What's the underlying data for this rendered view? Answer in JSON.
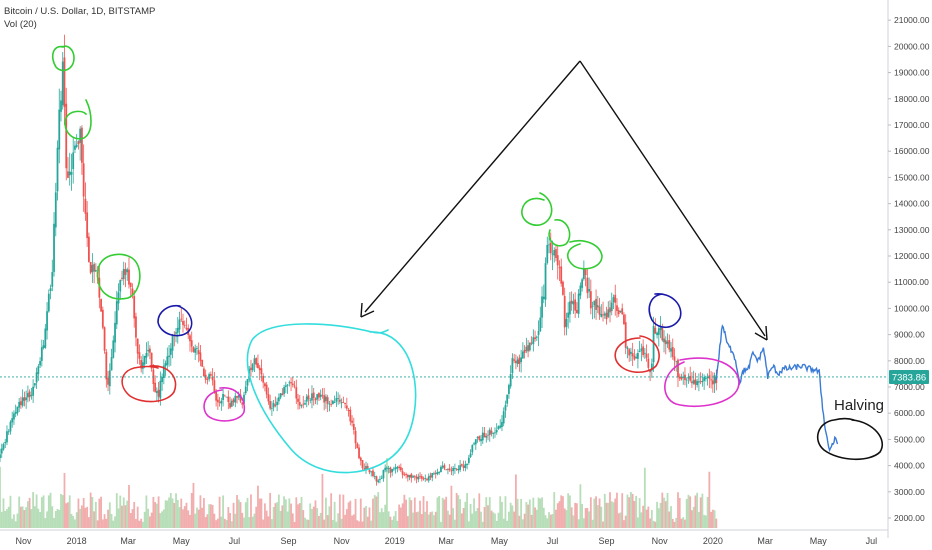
{
  "chart_title": "Bitcoin / U.S. Dollar, 1D, BITSTAMP",
  "volume_label": "Vol (20)",
  "chart_data": {
    "type": "line",
    "title": "Bitcoin / U.S. Dollar, 1D, BITSTAMP",
    "ylim": [
      1500,
      21500
    ],
    "y_ticks": [
      "2000.00",
      "3000.00",
      "4000.00",
      "5000.00",
      "6000.00",
      "7000.00",
      "8000.00",
      "9000.00",
      "10000.00",
      "11000.00",
      "12000.00",
      "13000.00",
      "14000.00",
      "15000.00",
      "16000.00",
      "17000.00",
      "18000.00",
      "19000.00",
      "20000.00",
      "21000.00"
    ],
    "y_tick_values": [
      2000,
      3000,
      4000,
      5000,
      6000,
      7000,
      8000,
      9000,
      10000,
      11000,
      12000,
      13000,
      14000,
      15000,
      16000,
      17000,
      18000,
      19000,
      20000,
      21000
    ],
    "x_ticks": [
      "Nov",
      "2018",
      "Mar",
      "May",
      "Jul",
      "Sep",
      "Nov",
      "2019",
      "Mar",
      "May",
      "Jul",
      "Sep",
      "Nov",
      "2020",
      "Mar",
      "May",
      "Jul"
    ],
    "x_tick_dates": [
      "2017-11-01",
      "2018-01-01",
      "2018-03-01",
      "2018-05-01",
      "2018-07-01",
      "2018-09-01",
      "2018-11-01",
      "2019-01-01",
      "2019-03-01",
      "2019-05-01",
      "2019-07-01",
      "2019-09-01",
      "2019-11-01",
      "2020-01-01",
      "2020-03-01",
      "2020-05-01",
      "2020-07-01"
    ],
    "x_range": [
      "2017-10-05",
      "2020-07-20"
    ],
    "current_price": "7383.86",
    "current_price_value": 7383.86,
    "price_series": {
      "name": "",
      "dates": [
        "2017-10-05",
        "2017-10-20",
        "2017-11-01",
        "2017-11-12",
        "2017-11-25",
        "2017-12-05",
        "2017-12-10",
        "2017-12-17",
        "2017-12-22",
        "2017-12-28",
        "2018-01-06",
        "2018-01-12",
        "2018-01-17",
        "2018-01-25",
        "2018-02-01",
        "2018-02-06",
        "2018-02-12",
        "2018-02-20",
        "2018-02-26",
        "2018-03-05",
        "2018-03-12",
        "2018-03-18",
        "2018-03-25",
        "2018-04-01",
        "2018-04-06",
        "2018-04-12",
        "2018-04-18",
        "2018-04-25",
        "2018-05-05",
        "2018-05-12",
        "2018-05-20",
        "2018-05-28",
        "2018-06-05",
        "2018-06-12",
        "2018-06-20",
        "2018-06-28",
        "2018-07-05",
        "2018-07-12",
        "2018-07-18",
        "2018-07-24",
        "2018-08-01",
        "2018-08-10",
        "2018-08-20",
        "2018-08-28",
        "2018-09-05",
        "2018-09-15",
        "2018-09-25",
        "2018-10-05",
        "2018-10-15",
        "2018-10-25",
        "2018-11-05",
        "2018-11-14",
        "2018-11-20",
        "2018-11-25",
        "2018-12-05",
        "2018-12-15",
        "2018-12-22",
        "2018-12-28",
        "2019-01-05",
        "2019-01-15",
        "2019-01-25",
        "2019-02-05",
        "2019-02-15",
        "2019-02-25",
        "2019-03-10",
        "2019-03-25",
        "2019-04-02",
        "2019-04-15",
        "2019-04-25",
        "2019-05-05",
        "2019-05-12",
        "2019-05-18",
        "2019-05-25",
        "2019-06-05",
        "2019-06-15",
        "2019-06-22",
        "2019-06-26",
        "2019-07-02",
        "2019-07-10",
        "2019-07-16",
        "2019-07-22",
        "2019-07-30",
        "2019-08-06",
        "2019-08-15",
        "2019-08-22",
        "2019-08-30",
        "2019-09-10",
        "2019-09-20",
        "2019-09-25",
        "2019-10-05",
        "2019-10-15",
        "2019-10-23",
        "2019-10-26",
        "2019-11-01",
        "2019-11-10",
        "2019-11-20",
        "2019-11-25",
        "2019-12-05",
        "2019-12-18",
        "2019-12-25",
        "2020-01-05"
      ],
      "values": [
        4300,
        5800,
        6600,
        6800,
        8600,
        11500,
        15500,
        19500,
        14500,
        15600,
        16800,
        13500,
        11500,
        11200,
        9200,
        7000,
        8500,
        11000,
        11400,
        11000,
        8400,
        7800,
        8600,
        7000,
        6700,
        7900,
        8200,
        9200,
        9500,
        8600,
        8300,
        7400,
        7500,
        6500,
        6700,
        6300,
        6600,
        6400,
        7400,
        8200,
        7600,
        6300,
        6400,
        7000,
        7200,
        6400,
        6600,
        6600,
        6500,
        6450,
        6400,
        5600,
        4600,
        4000,
        3800,
        3300,
        4000,
        3800,
        3900,
        3600,
        3600,
        3450,
        3650,
        3900,
        3900,
        4000,
        4900,
        5200,
        5300,
        5600,
        6800,
        8200,
        8000,
        8500,
        9000,
        10700,
        12500,
        12300,
        11800,
        9500,
        10300,
        10000,
        11500,
        10200,
        10100,
        9700,
        10200,
        9800,
        8400,
        8100,
        8400,
        7500,
        9200,
        9200,
        8600,
        8000,
        7200,
        7300,
        7200,
        7200,
        7300
      ],
      "color": "#26a69a"
    },
    "projection_series": {
      "name": "",
      "dates": [
        "2020-01-05",
        "2020-01-12",
        "2020-01-18",
        "2020-01-25",
        "2020-02-01",
        "2020-02-06",
        "2020-02-10",
        "2020-02-16",
        "2020-02-22",
        "2020-02-28",
        "2020-03-04",
        "2020-03-10",
        "2020-03-16",
        "2020-03-22",
        "2020-03-28",
        "2020-04-05",
        "2020-04-12",
        "2020-04-20",
        "2020-04-28",
        "2020-05-02",
        "2020-05-06",
        "2020-05-10",
        "2020-05-14",
        "2020-05-20",
        "2020-05-24"
      ],
      "values": [
        7300,
        9400,
        8600,
        8300,
        7200,
        7700,
        7600,
        8300,
        8000,
        8500,
        7400,
        7800,
        7500,
        7700,
        7700,
        7750,
        7800,
        7700,
        7650,
        7550,
        6200,
        5200,
        4600,
        5000,
        4800
      ],
      "color": "#3a7bd5"
    },
    "volume_series": {
      "name": "Vol (20)",
      "note_units": "relative",
      "colors": {
        "up": "#a5d6a7",
        "down": "#ef9a9a"
      }
    },
    "annotations": [
      {
        "type": "text",
        "text": "Halving"
      }
    ],
    "colors": {
      "up": "#26a69a",
      "down": "#ef5350",
      "projection": "#3a7bd5",
      "price_label_bg": "#26a69a",
      "price_line": "#26a69a"
    },
    "grid": false,
    "legend": "top-left"
  }
}
